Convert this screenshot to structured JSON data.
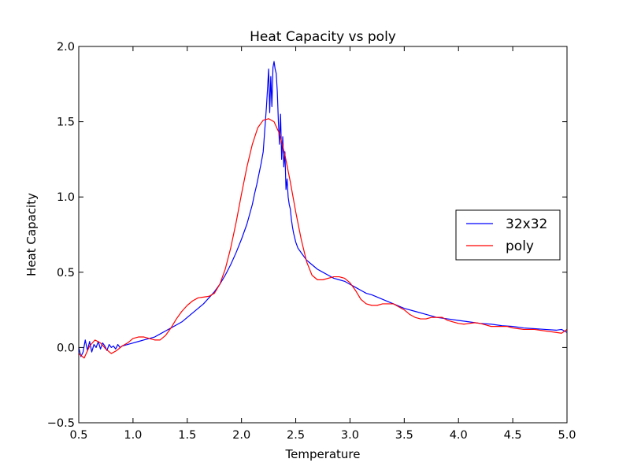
{
  "chart_data": {
    "type": "line",
    "title": "Heat Capacity vs poly",
    "xlabel": "Temperature",
    "ylabel": "Heat Capacity",
    "xlim": [
      0.5,
      5.0
    ],
    "ylim": [
      -0.5,
      2.0
    ],
    "xticks": [
      0.5,
      1.0,
      1.5,
      2.0,
      2.5,
      3.0,
      3.5,
      4.0,
      4.5,
      5.0
    ],
    "xtick_labels": [
      "0.5",
      "1.0",
      "1.5",
      "2.0",
      "2.5",
      "3.0",
      "3.5",
      "4.0",
      "4.5",
      "5.0"
    ],
    "yticks": [
      -0.5,
      0.0,
      0.5,
      1.0,
      1.5,
      2.0
    ],
    "ytick_labels": [
      "−0.5",
      "0.0",
      "0.5",
      "1.0",
      "1.5",
      "2.0"
    ],
    "grid": false,
    "legend": "center-right",
    "series": [
      {
        "name": "32x32",
        "color": "#0000ff",
        "x": [
          0.5,
          0.52,
          0.54,
          0.56,
          0.58,
          0.6,
          0.62,
          0.64,
          0.66,
          0.68,
          0.7,
          0.72,
          0.74,
          0.76,
          0.78,
          0.8,
          0.82,
          0.84,
          0.86,
          0.88,
          0.9,
          0.95,
          1.0,
          1.05,
          1.1,
          1.15,
          1.2,
          1.25,
          1.3,
          1.35,
          1.4,
          1.45,
          1.5,
          1.55,
          1.6,
          1.65,
          1.7,
          1.75,
          1.8,
          1.85,
          1.9,
          1.95,
          2.0,
          2.05,
          2.1,
          2.12,
          2.14,
          2.16,
          2.18,
          2.2,
          2.21,
          2.22,
          2.23,
          2.24,
          2.25,
          2.26,
          2.27,
          2.28,
          2.29,
          2.3,
          2.31,
          2.32,
          2.33,
          2.34,
          2.35,
          2.36,
          2.37,
          2.38,
          2.39,
          2.4,
          2.41,
          2.42,
          2.43,
          2.44,
          2.45,
          2.46,
          2.47,
          2.48,
          2.5,
          2.52,
          2.54,
          2.56,
          2.58,
          2.6,
          2.65,
          2.7,
          2.75,
          2.8,
          2.85,
          2.9,
          2.95,
          3.0,
          3.05,
          3.1,
          3.15,
          3.2,
          3.3,
          3.4,
          3.5,
          3.6,
          3.7,
          3.8,
          3.9,
          4.0,
          4.1,
          4.2,
          4.3,
          4.4,
          4.5,
          4.6,
          4.7,
          4.8,
          4.9,
          4.95,
          5.0
        ],
        "values": [
          0.0,
          -0.06,
          -0.03,
          0.05,
          -0.02,
          0.04,
          -0.03,
          0.02,
          0.0,
          0.04,
          -0.01,
          0.03,
          0.01,
          -0.02,
          0.02,
          0.0,
          0.01,
          -0.01,
          0.02,
          0.0,
          0.01,
          0.02,
          0.03,
          0.04,
          0.05,
          0.06,
          0.07,
          0.09,
          0.11,
          0.13,
          0.15,
          0.17,
          0.2,
          0.23,
          0.26,
          0.29,
          0.33,
          0.37,
          0.42,
          0.48,
          0.55,
          0.63,
          0.72,
          0.82,
          0.95,
          1.02,
          1.08,
          1.15,
          1.22,
          1.3,
          1.4,
          1.5,
          1.6,
          1.72,
          1.85,
          1.56,
          1.8,
          1.6,
          1.86,
          1.9,
          1.85,
          1.82,
          1.7,
          1.5,
          1.35,
          1.55,
          1.25,
          1.4,
          1.2,
          1.3,
          1.05,
          1.12,
          1.0,
          0.95,
          0.92,
          0.85,
          0.8,
          0.76,
          0.7,
          0.66,
          0.64,
          0.62,
          0.6,
          0.58,
          0.55,
          0.52,
          0.5,
          0.48,
          0.46,
          0.45,
          0.44,
          0.42,
          0.4,
          0.38,
          0.36,
          0.35,
          0.32,
          0.29,
          0.26,
          0.24,
          0.22,
          0.2,
          0.19,
          0.18,
          0.17,
          0.16,
          0.155,
          0.145,
          0.14,
          0.13,
          0.125,
          0.12,
          0.115,
          0.12,
          0.1
        ]
      },
      {
        "name": "poly",
        "color": "#ff0000",
        "x": [
          0.5,
          0.55,
          0.6,
          0.65,
          0.7,
          0.75,
          0.8,
          0.85,
          0.9,
          0.95,
          1.0,
          1.05,
          1.1,
          1.15,
          1.2,
          1.25,
          1.3,
          1.35,
          1.4,
          1.45,
          1.5,
          1.55,
          1.6,
          1.65,
          1.7,
          1.75,
          1.8,
          1.85,
          1.9,
          1.95,
          2.0,
          2.05,
          2.1,
          2.15,
          2.2,
          2.25,
          2.3,
          2.35,
          2.4,
          2.45,
          2.5,
          2.55,
          2.6,
          2.65,
          2.7,
          2.75,
          2.8,
          2.85,
          2.9,
          2.95,
          3.0,
          3.05,
          3.1,
          3.15,
          3.2,
          3.25,
          3.3,
          3.35,
          3.4,
          3.45,
          3.5,
          3.55,
          3.6,
          3.65,
          3.7,
          3.75,
          3.8,
          3.85,
          3.9,
          3.95,
          4.0,
          4.05,
          4.1,
          4.15,
          4.2,
          4.25,
          4.3,
          4.35,
          4.4,
          4.45,
          4.5,
          4.55,
          4.6,
          4.65,
          4.7,
          4.75,
          4.8,
          4.85,
          4.9,
          4.95,
          5.0
        ],
        "values": [
          -0.04,
          -0.07,
          0.01,
          0.05,
          0.03,
          -0.01,
          -0.04,
          -0.02,
          0.01,
          0.03,
          0.06,
          0.07,
          0.07,
          0.06,
          0.05,
          0.05,
          0.08,
          0.13,
          0.19,
          0.24,
          0.28,
          0.31,
          0.33,
          0.335,
          0.34,
          0.36,
          0.42,
          0.52,
          0.66,
          0.83,
          1.02,
          1.2,
          1.35,
          1.46,
          1.51,
          1.52,
          1.5,
          1.42,
          1.28,
          1.1,
          0.9,
          0.72,
          0.57,
          0.48,
          0.45,
          0.45,
          0.46,
          0.47,
          0.47,
          0.46,
          0.43,
          0.38,
          0.32,
          0.29,
          0.28,
          0.28,
          0.29,
          0.29,
          0.29,
          0.27,
          0.25,
          0.22,
          0.2,
          0.19,
          0.19,
          0.2,
          0.2,
          0.2,
          0.18,
          0.17,
          0.16,
          0.155,
          0.16,
          0.165,
          0.16,
          0.15,
          0.14,
          0.14,
          0.14,
          0.14,
          0.13,
          0.125,
          0.12,
          0.12,
          0.12,
          0.115,
          0.11,
          0.105,
          0.1,
          0.095,
          0.12
        ]
      }
    ]
  }
}
